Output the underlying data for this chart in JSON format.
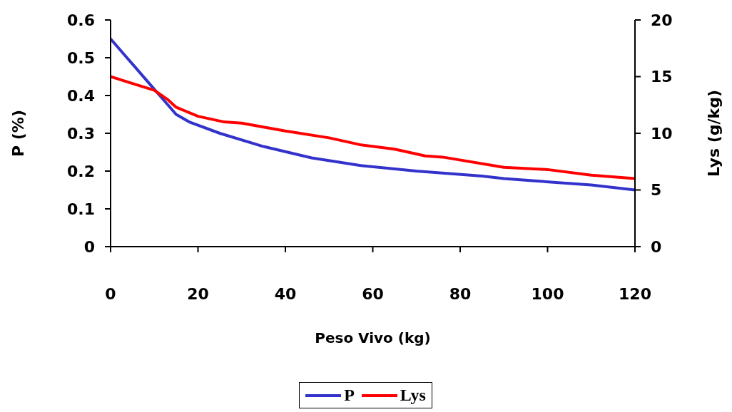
{
  "chart_data": {
    "type": "line",
    "xlabel": "Peso Vivo (kg)",
    "ylabel": "P (%)",
    "y2label": "Lys (g/kg)",
    "xlim": [
      0,
      120
    ],
    "xticks": [
      0,
      20,
      40,
      60,
      80,
      100,
      120
    ],
    "ylim": [
      0,
      0.6
    ],
    "yticks": [
      0,
      0.1,
      0.2,
      0.3,
      0.4,
      0.5,
      0.6
    ],
    "y2lim": [
      0,
      20
    ],
    "y2ticks": [
      0,
      5,
      10,
      15,
      20
    ],
    "grid": false,
    "legend": "bottom",
    "marker": "none",
    "line_style": "solid",
    "series": [
      {
        "name": "P",
        "color": "#3333cc",
        "x": [
          0,
          3,
          6,
          9,
          12,
          15,
          18,
          25,
          35,
          46,
          57,
          70,
          85,
          90,
          110,
          120
        ],
        "values": [
          0.55,
          0.51,
          0.47,
          0.43,
          0.39,
          0.35,
          0.33,
          0.3,
          0.265,
          0.235,
          0.215,
          0.2,
          0.187,
          0.18,
          0.163,
          0.15
        ]
      },
      {
        "name": "Lys",
        "color": "#ff0000",
        "axis": "y2",
        "x": [
          0,
          5,
          10,
          13,
          15,
          20,
          26,
          30,
          40,
          50,
          57,
          65,
          72,
          76,
          90,
          100,
          110,
          120
        ],
        "values": [
          15,
          14.4,
          13.8,
          13,
          12.3,
          11.5,
          11,
          10.9,
          10.2,
          9.6,
          9,
          8.6,
          8,
          7.9,
          7,
          6.8,
          6.3,
          6
        ]
      }
    ]
  }
}
